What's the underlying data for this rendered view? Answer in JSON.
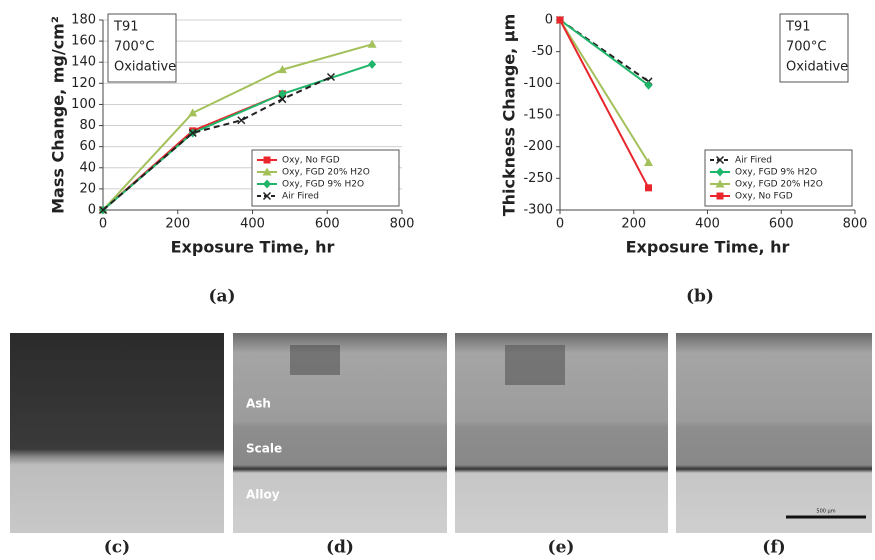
{
  "chart_data": [
    {
      "type": "line",
      "xlabel": "Exposure Time, hr",
      "ylabel": "Mass Change, mg/cm²",
      "xlim": [
        0,
        800
      ],
      "xticks": [
        0,
        200,
        400,
        600,
        800
      ],
      "ylim": [
        0,
        180
      ],
      "yticks": [
        0,
        20,
        40,
        60,
        80,
        100,
        120,
        140,
        160,
        180
      ],
      "grid": true,
      "legend": "lower right",
      "annotation": [
        "T91",
        "700°C",
        "Oxidative"
      ],
      "series": [
        {
          "name": "Oxy, No FGD",
          "color": "#e8262b",
          "marker": "square",
          "x": [
            0,
            240,
            480
          ],
          "values": [
            0,
            75,
            110
          ]
        },
        {
          "name": "Oxy, FGD 20% H2O",
          "color": "#a3c05a",
          "marker": "triangle",
          "x": [
            0,
            240,
            480,
            720
          ],
          "values": [
            0,
            92,
            133,
            157
          ]
        },
        {
          "name": "Oxy, FGD 9% H2O",
          "color": "#1fb56a",
          "marker": "diamond",
          "x": [
            0,
            240,
            480,
            720
          ],
          "values": [
            0,
            73,
            110,
            138
          ]
        },
        {
          "name": "Air Fired",
          "color": "#222222",
          "marker": "x",
          "dash": true,
          "x": [
            0,
            240,
            370,
            480,
            610
          ],
          "values": [
            0,
            73,
            85,
            105,
            126
          ]
        }
      ]
    },
    {
      "type": "line",
      "xlabel": "Exposure Time, hr",
      "ylabel": "Thickness Change, µm",
      "xlim": [
        0,
        800
      ],
      "xticks": [
        0,
        200,
        400,
        600,
        800
      ],
      "ylim": [
        -300,
        0
      ],
      "yticks": [
        -300,
        -250,
        -200,
        -150,
        -100,
        -50,
        0
      ],
      "grid": false,
      "legend": "lower right",
      "annotation": [
        "T91",
        "700°C",
        "Oxidative"
      ],
      "series": [
        {
          "name": "Air Fired",
          "color": "#222222",
          "marker": "x",
          "dash": true,
          "x": [
            0,
            240
          ],
          "values": [
            0,
            -97
          ]
        },
        {
          "name": "Oxy, FGD 9% H2O",
          "color": "#1fb56a",
          "marker": "diamond",
          "x": [
            0,
            240
          ],
          "values": [
            0,
            -103
          ]
        },
        {
          "name": "Oxy, FGD 20% H2O",
          "color": "#a3c05a",
          "marker": "triangle",
          "x": [
            0,
            240
          ],
          "values": [
            0,
            -225
          ]
        },
        {
          "name": "Oxy, No FGD",
          "color": "#e8262b",
          "marker": "square",
          "x": [
            0,
            240
          ],
          "values": [
            0,
            -265
          ]
        }
      ]
    }
  ],
  "panel_labels": [
    "(a)",
    "(b)",
    "(c)",
    "(d)",
    "(e)",
    "(f)"
  ],
  "micrograph_labels": [
    "Ash",
    "Scale",
    "Alloy"
  ],
  "scale_bar": "500 µm"
}
